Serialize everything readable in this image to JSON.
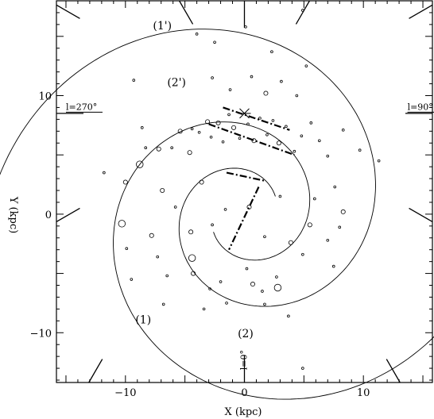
{
  "chart_data": {
    "type": "scatter",
    "title": "",
    "xlabel": "X (kpc)",
    "ylabel": "Y (kpc)",
    "xlim": [
      -15.8,
      15.8
    ],
    "ylim": [
      -14.2,
      18.0
    ],
    "grid": false,
    "x_ticks": [
      -10,
      0,
      10
    ],
    "y_ticks": [
      -10,
      0,
      10
    ],
    "x_tick_labels": [
      "−10",
      "0",
      "10"
    ],
    "y_tick_labels": [
      "−10",
      "0",
      "10"
    ],
    "longitude_labels": [
      {
        "text": "l=270°",
        "x": -15.0,
        "y": 8.8
      },
      {
        "text": "l=90°",
        "x": 13.7,
        "y": 8.8
      },
      {
        "text": "l=0°",
        "x": 0.2,
        "y": -12.3
      }
    ],
    "sun": {
      "x": 0.0,
      "y": 8.5
    },
    "spiral_arms": [
      {
        "name": "(1)",
        "label_at": [
          -8.5,
          -9.2
        ],
        "r0": 3.0,
        "theta_start_deg": -150,
        "theta_end_deg": 420,
        "pitch_deg": 12.5
      },
      {
        "name": "(2)",
        "label_at": [
          0.1,
          -10.4
        ],
        "r0": 3.0,
        "theta_start_deg": 30,
        "theta_end_deg": 535,
        "pitch_deg": 12.5
      },
      {
        "name": "(1')",
        "label_at": [
          -6.9,
          15.6
        ],
        "r0": 3.0,
        "theta_start_deg": 420,
        "theta_end_deg": 480,
        "pitch_deg": 12.5
      },
      {
        "name": "(2')",
        "label_at": [
          -5.7,
          10.8
        ],
        "r0": 3.0,
        "theta_start_deg": 535,
        "theta_end_deg": 556,
        "pitch_deg": 12.5
      }
    ],
    "dashed_segments": [
      {
        "from": [
          -1.8,
          9.0
        ],
        "to": [
          3.8,
          7.1
        ]
      },
      {
        "from": [
          -3.0,
          7.6
        ],
        "to": [
          4.2,
          5.0
        ]
      },
      {
        "from": [
          -1.5,
          3.5
        ],
        "to": [
          1.8,
          2.8
        ]
      },
      {
        "from": [
          1.2,
          2.3
        ],
        "to": [
          -1.3,
          -3.0
        ]
      }
    ],
    "sources": [
      {
        "x": -11.8,
        "y": 3.5,
        "size": 1
      },
      {
        "x": -9.3,
        "y": 11.3,
        "size": 1
      },
      {
        "x": -8.6,
        "y": 7.3,
        "size": 1
      },
      {
        "x": -8.3,
        "y": 5.6,
        "size": 1
      },
      {
        "x": -7.2,
        "y": 5.5,
        "size": 2
      },
      {
        "x": -6.1,
        "y": 5.6,
        "size": 1
      },
      {
        "x": -5.4,
        "y": 7.0,
        "size": 2
      },
      {
        "x": -4.6,
        "y": 5.2,
        "size": 2
      },
      {
        "x": -4.4,
        "y": 7.2,
        "size": 1
      },
      {
        "x": -3.8,
        "y": 6.9,
        "size": 1
      },
      {
        "x": -3.1,
        "y": 7.8,
        "size": 2
      },
      {
        "x": -2.8,
        "y": 6.5,
        "size": 1
      },
      {
        "x": -2.2,
        "y": 7.7,
        "size": 2
      },
      {
        "x": -1.8,
        "y": 6.1,
        "size": 1
      },
      {
        "x": -1.3,
        "y": 8.4,
        "size": 1
      },
      {
        "x": -0.9,
        "y": 7.3,
        "size": 2
      },
      {
        "x": -0.4,
        "y": 6.4,
        "size": 1
      },
      {
        "x": 0.3,
        "y": 7.6,
        "size": 1
      },
      {
        "x": 0.8,
        "y": 6.2,
        "size": 2
      },
      {
        "x": 1.3,
        "y": 8.1,
        "size": 1
      },
      {
        "x": 1.9,
        "y": 6.7,
        "size": 1
      },
      {
        "x": 2.4,
        "y": 7.9,
        "size": 1
      },
      {
        "x": 2.9,
        "y": 6.0,
        "size": 2
      },
      {
        "x": 3.5,
        "y": 7.4,
        "size": 1
      },
      {
        "x": 4.2,
        "y": 5.3,
        "size": 1
      },
      {
        "x": 4.8,
        "y": 6.6,
        "size": 1
      },
      {
        "x": 5.6,
        "y": 7.7,
        "size": 1
      },
      {
        "x": 6.3,
        "y": 6.2,
        "size": 1
      },
      {
        "x": 7.0,
        "y": 4.9,
        "size": 1
      },
      {
        "x": 8.3,
        "y": 7.1,
        "size": 1
      },
      {
        "x": 9.7,
        "y": 5.4,
        "size": 1
      },
      {
        "x": 11.3,
        "y": 4.5,
        "size": 1
      },
      {
        "x": -2.7,
        "y": 11.5,
        "size": 1
      },
      {
        "x": -1.2,
        "y": 10.5,
        "size": 1
      },
      {
        "x": 0.6,
        "y": 11.6,
        "size": 1
      },
      {
        "x": 1.8,
        "y": 10.2,
        "size": 2
      },
      {
        "x": 3.1,
        "y": 11.2,
        "size": 1
      },
      {
        "x": 4.4,
        "y": 10.0,
        "size": 1
      },
      {
        "x": -4.0,
        "y": 15.2,
        "size": 1
      },
      {
        "x": -2.5,
        "y": 14.5,
        "size": 1
      },
      {
        "x": 0.1,
        "y": 15.8,
        "size": 1
      },
      {
        "x": 2.3,
        "y": 13.7,
        "size": 1
      },
      {
        "x": 5.2,
        "y": 12.5,
        "size": 1
      },
      {
        "x": 4.9,
        "y": 17.2,
        "size": 1
      },
      {
        "x": -10.0,
        "y": 2.7,
        "size": 2
      },
      {
        "x": -8.8,
        "y": 4.2,
        "size": 3
      },
      {
        "x": -6.9,
        "y": 2.0,
        "size": 2
      },
      {
        "x": -5.8,
        "y": 0.6,
        "size": 1
      },
      {
        "x": -3.6,
        "y": 2.7,
        "size": 2
      },
      {
        "x": -2.7,
        "y": -0.9,
        "size": 1
      },
      {
        "x": -1.6,
        "y": 0.4,
        "size": 1
      },
      {
        "x": -10.3,
        "y": -0.8,
        "size": 3
      },
      {
        "x": -9.9,
        "y": -2.9,
        "size": 1
      },
      {
        "x": -9.5,
        "y": -5.5,
        "size": 1
      },
      {
        "x": -7.8,
        "y": -1.8,
        "size": 2
      },
      {
        "x": -7.3,
        "y": -3.6,
        "size": 1
      },
      {
        "x": -6.5,
        "y": -5.2,
        "size": 1
      },
      {
        "x": -4.5,
        "y": -1.5,
        "size": 2
      },
      {
        "x": -4.4,
        "y": -3.7,
        "size": 3
      },
      {
        "x": -4.3,
        "y": -5.0,
        "size": 2
      },
      {
        "x": -2.9,
        "y": -6.3,
        "size": 1
      },
      {
        "x": -1.5,
        "y": -7.5,
        "size": 1
      },
      {
        "x": 0.7,
        "y": -5.9,
        "size": 2
      },
      {
        "x": 1.5,
        "y": -6.5,
        "size": 1
      },
      {
        "x": 2.7,
        "y": -5.3,
        "size": 1
      },
      {
        "x": 2.8,
        "y": -6.2,
        "size": 3
      },
      {
        "x": 3.9,
        "y": -2.4,
        "size": 2
      },
      {
        "x": 4.9,
        "y": -3.4,
        "size": 1
      },
      {
        "x": 5.5,
        "y": -0.9,
        "size": 2
      },
      {
        "x": 5.9,
        "y": 1.3,
        "size": 1
      },
      {
        "x": 7.0,
        "y": -2.2,
        "size": 1
      },
      {
        "x": 7.5,
        "y": -4.4,
        "size": 1
      },
      {
        "x": 8.0,
        "y": -1.1,
        "size": 1
      },
      {
        "x": 8.3,
        "y": 0.2,
        "size": 2
      },
      {
        "x": 7.6,
        "y": 2.3,
        "size": 1
      },
      {
        "x": 0.4,
        "y": 0.6,
        "size": 2
      },
      {
        "x": 1.7,
        "y": -1.9,
        "size": 1
      },
      {
        "x": 3.0,
        "y": 1.5,
        "size": 1
      },
      {
        "x": 0.2,
        "y": -4.6,
        "size": 1
      },
      {
        "x": 1.7,
        "y": -7.6,
        "size": 1
      },
      {
        "x": 3.7,
        "y": -8.6,
        "size": 1
      },
      {
        "x": -3.4,
        "y": -8.0,
        "size": 1
      },
      {
        "x": -6.8,
        "y": -7.6,
        "size": 1
      },
      {
        "x": -2.0,
        "y": -5.7,
        "size": 1
      },
      {
        "x": 4.9,
        "y": -13.0,
        "size": 1
      }
    ]
  }
}
